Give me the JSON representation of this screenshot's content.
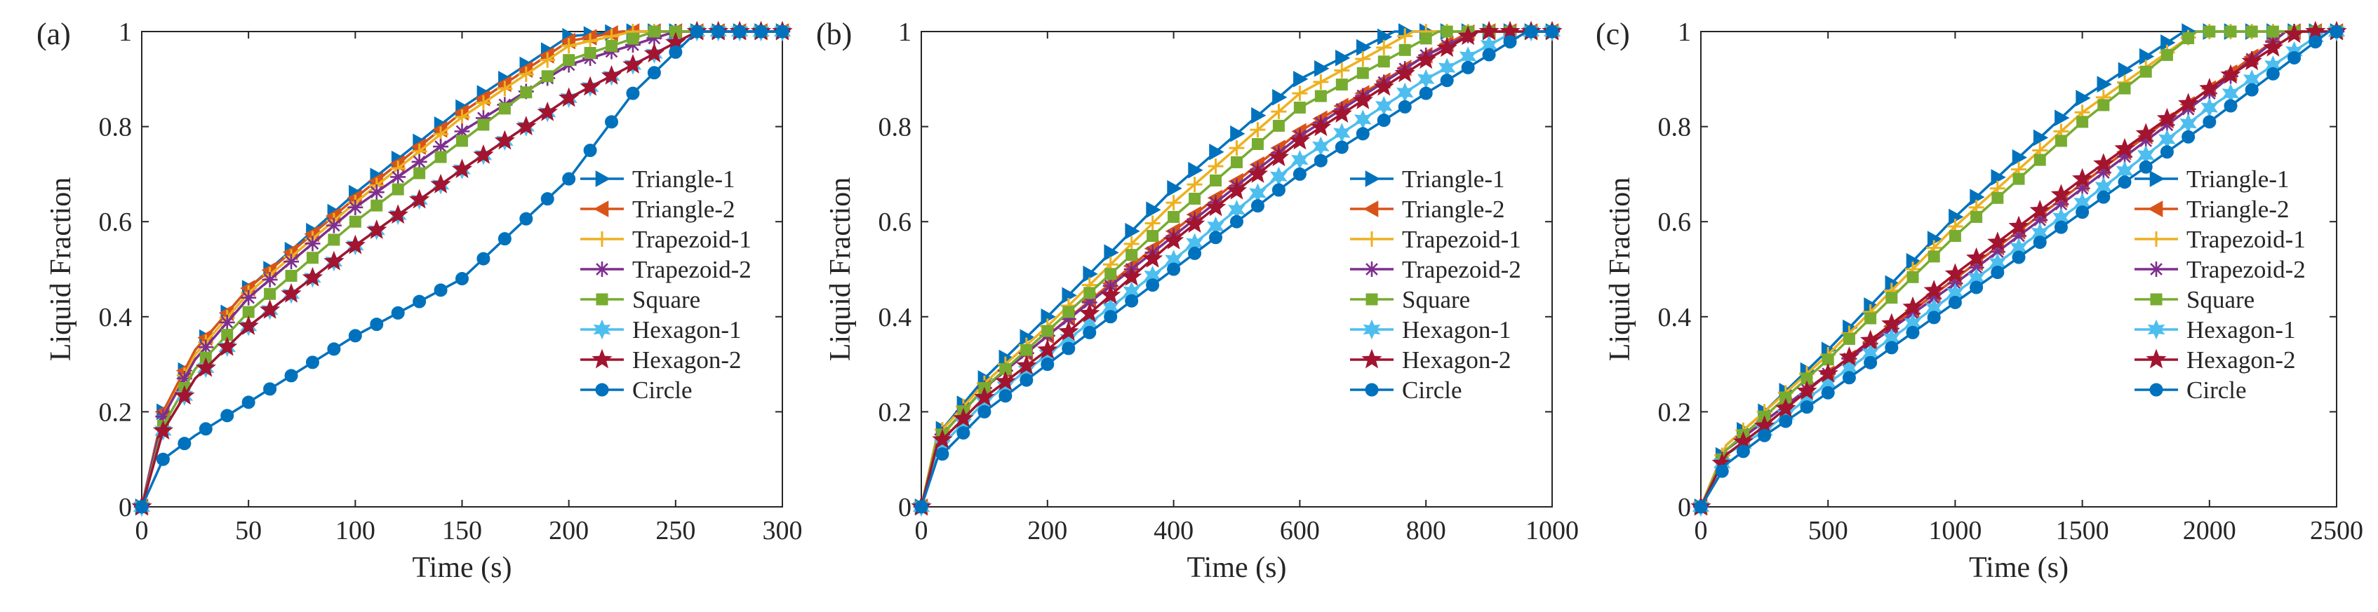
{
  "figure": {
    "panel_labels": [
      "(a)",
      "(b)",
      "(c)"
    ]
  },
  "legend_markers": {
    "Triangle-1": "triangle-right",
    "Triangle-2": "triangle-left",
    "Trapezoid-1": "plus",
    "Trapezoid-2": "asterisk",
    "Square": "square",
    "Hexagon-1": "hexagram",
    "Hexagon-2": "pentagram",
    "Circle": "circle"
  },
  "chart_data": [
    {
      "type": "line",
      "panel": "(a)",
      "xlabel": "Time (s)",
      "ylabel": "Liquid Fraction",
      "xlim": [
        0,
        300
      ],
      "ylim": [
        0,
        1
      ],
      "xticks": [
        0,
        50,
        100,
        150,
        200,
        250,
        300
      ],
      "yticks": [
        0,
        0.2,
        0.4,
        0.6,
        0.8,
        1
      ],
      "legend": "right-center",
      "series": [
        {
          "name": "Triangle-1",
          "color": "#0072BD",
          "x": [
            0,
            10,
            25,
            50,
            100,
            150,
            200,
            225,
            300
          ],
          "y": [
            0,
            0.2,
            0.33,
            0.46,
            0.66,
            0.84,
            0.99,
            1,
            1
          ]
        },
        {
          "name": "Triangle-2",
          "color": "#D95319",
          "x": [
            0,
            10,
            25,
            50,
            100,
            150,
            200,
            225,
            300
          ],
          "y": [
            0,
            0.2,
            0.33,
            0.46,
            0.65,
            0.83,
            0.98,
            1,
            1
          ]
        },
        {
          "name": "Trapezoid-1",
          "color": "#EDB120",
          "x": [
            0,
            10,
            25,
            50,
            100,
            150,
            200,
            230,
            300
          ],
          "y": [
            0,
            0.19,
            0.32,
            0.45,
            0.64,
            0.82,
            0.97,
            1,
            1
          ]
        },
        {
          "name": "Trapezoid-2",
          "color": "#7E2F8E",
          "x": [
            0,
            10,
            25,
            50,
            100,
            150,
            200,
            250,
            300
          ],
          "y": [
            0,
            0.19,
            0.31,
            0.44,
            0.63,
            0.79,
            0.93,
            1,
            1
          ]
        },
        {
          "name": "Square",
          "color": "#77AC30",
          "x": [
            0,
            10,
            25,
            50,
            100,
            150,
            200,
            240,
            300
          ],
          "y": [
            0,
            0.17,
            0.29,
            0.41,
            0.6,
            0.77,
            0.94,
            1,
            1
          ]
        },
        {
          "name": "Hexagon-1",
          "color": "#4DBEEE",
          "x": [
            0,
            10,
            25,
            50,
            100,
            150,
            200,
            260,
            300
          ],
          "y": [
            0,
            0.16,
            0.27,
            0.38,
            0.55,
            0.71,
            0.86,
            1,
            1
          ]
        },
        {
          "name": "Hexagon-2",
          "color": "#A2142F",
          "x": [
            0,
            10,
            25,
            50,
            100,
            150,
            200,
            260,
            300
          ],
          "y": [
            0,
            0.16,
            0.27,
            0.38,
            0.55,
            0.71,
            0.86,
            1,
            1
          ]
        },
        {
          "name": "Circle",
          "color": "#0072BD",
          "x": [
            0,
            10,
            25,
            50,
            100,
            150,
            200,
            230,
            260,
            300
          ],
          "y": [
            0,
            0.1,
            0.15,
            0.22,
            0.36,
            0.48,
            0.69,
            0.87,
            1,
            1
          ]
        }
      ]
    },
    {
      "type": "line",
      "panel": "(b)",
      "xlabel": "Time (s)",
      "ylabel": "Liquid Fraction",
      "xlim": [
        0,
        1000
      ],
      "ylim": [
        0,
        1
      ],
      "xticks": [
        0,
        200,
        400,
        600,
        800,
        1000
      ],
      "yticks": [
        0,
        0.2,
        0.4,
        0.6,
        0.8,
        1
      ],
      "legend": "right-center",
      "series": [
        {
          "name": "Triangle-1",
          "color": "#0072BD",
          "x": [
            0,
            25,
            100,
            200,
            400,
            600,
            750,
            1000
          ],
          "y": [
            0,
            0.15,
            0.27,
            0.4,
            0.67,
            0.9,
            1,
            1
          ]
        },
        {
          "name": "Triangle-2",
          "color": "#D95319",
          "x": [
            0,
            25,
            100,
            200,
            400,
            600,
            800,
            870,
            1000
          ],
          "y": [
            0,
            0.14,
            0.25,
            0.36,
            0.58,
            0.79,
            0.95,
            1,
            1
          ]
        },
        {
          "name": "Trapezoid-1",
          "color": "#EDB120",
          "x": [
            0,
            25,
            100,
            200,
            400,
            600,
            780,
            1000
          ],
          "y": [
            0,
            0.15,
            0.26,
            0.38,
            0.64,
            0.87,
            1,
            1
          ]
        },
        {
          "name": "Trapezoid-2",
          "color": "#7E2F8E",
          "x": [
            0,
            25,
            100,
            200,
            400,
            600,
            800,
            880,
            1000
          ],
          "y": [
            0,
            0.14,
            0.25,
            0.36,
            0.57,
            0.78,
            0.95,
            1,
            1
          ]
        },
        {
          "name": "Square",
          "color": "#77AC30",
          "x": [
            0,
            25,
            100,
            200,
            400,
            600,
            820,
            1000
          ],
          "y": [
            0,
            0.14,
            0.25,
            0.37,
            0.61,
            0.84,
            1,
            1
          ]
        },
        {
          "name": "Hexagon-1",
          "color": "#4DBEEE",
          "x": [
            0,
            25,
            100,
            200,
            400,
            600,
            800,
            940,
            1000
          ],
          "y": [
            0,
            0.12,
            0.22,
            0.32,
            0.52,
            0.73,
            0.9,
            1,
            1
          ]
        },
        {
          "name": "Hexagon-2",
          "color": "#A2142F",
          "x": [
            0,
            25,
            100,
            200,
            400,
            600,
            800,
            880,
            1000
          ],
          "y": [
            0,
            0.13,
            0.23,
            0.33,
            0.56,
            0.77,
            0.94,
            1,
            1
          ]
        },
        {
          "name": "Circle",
          "color": "#0072BD",
          "x": [
            0,
            25,
            100,
            200,
            400,
            600,
            800,
            960,
            1000
          ],
          "y": [
            0,
            0.1,
            0.2,
            0.3,
            0.5,
            0.7,
            0.87,
            1,
            1
          ]
        }
      ]
    },
    {
      "type": "line",
      "panel": "(c)",
      "xlabel": "Time (s)",
      "ylabel": "Liquid Fraction",
      "xlim": [
        0,
        2500
      ],
      "ylim": [
        0,
        1
      ],
      "xticks": [
        0,
        500,
        1000,
        1500,
        2000,
        2500
      ],
      "yticks": [
        0,
        0.2,
        0.4,
        0.6,
        0.8,
        1
      ],
      "legend": "right-center",
      "series": [
        {
          "name": "Triangle-1",
          "color": "#0072BD",
          "x": [
            0,
            100,
            250,
            500,
            1000,
            1500,
            1900,
            2500
          ],
          "y": [
            0,
            0.13,
            0.2,
            0.33,
            0.61,
            0.86,
            1,
            1
          ]
        },
        {
          "name": "Triangle-2",
          "color": "#D95319",
          "x": [
            0,
            100,
            250,
            500,
            1000,
            1500,
            2000,
            2300,
            2500
          ],
          "y": [
            0,
            0.12,
            0.18,
            0.28,
            0.48,
            0.68,
            0.88,
            1,
            1
          ]
        },
        {
          "name": "Trapezoid-1",
          "color": "#EDB120",
          "x": [
            0,
            100,
            250,
            500,
            1000,
            1500,
            1950,
            2500
          ],
          "y": [
            0,
            0.13,
            0.2,
            0.32,
            0.59,
            0.83,
            1,
            1
          ]
        },
        {
          "name": "Trapezoid-2",
          "color": "#7E2F8E",
          "x": [
            0,
            100,
            250,
            500,
            1000,
            1500,
            2000,
            2300,
            2500
          ],
          "y": [
            0,
            0.12,
            0.18,
            0.28,
            0.47,
            0.67,
            0.87,
            1,
            1
          ]
        },
        {
          "name": "Square",
          "color": "#77AC30",
          "x": [
            0,
            100,
            250,
            500,
            1000,
            1500,
            1950,
            2500
          ],
          "y": [
            0,
            0.12,
            0.19,
            0.31,
            0.57,
            0.81,
            1,
            1
          ]
        },
        {
          "name": "Hexagon-1",
          "color": "#4DBEEE",
          "x": [
            0,
            100,
            250,
            500,
            1000,
            1500,
            2000,
            2450,
            2500
          ],
          "y": [
            0,
            0.11,
            0.16,
            0.26,
            0.45,
            0.64,
            0.84,
            1,
            1
          ]
        },
        {
          "name": "Hexagon-2",
          "color": "#A2142F",
          "x": [
            0,
            100,
            250,
            500,
            1000,
            1500,
            2000,
            2350,
            2500
          ],
          "y": [
            0,
            0.11,
            0.17,
            0.28,
            0.49,
            0.69,
            0.88,
            1,
            1
          ]
        },
        {
          "name": "Circle",
          "color": "#0072BD",
          "x": [
            0,
            100,
            250,
            500,
            1000,
            1500,
            2000,
            2470,
            2500
          ],
          "y": [
            0,
            0.09,
            0.15,
            0.24,
            0.43,
            0.62,
            0.81,
            1,
            1
          ]
        }
      ]
    }
  ]
}
